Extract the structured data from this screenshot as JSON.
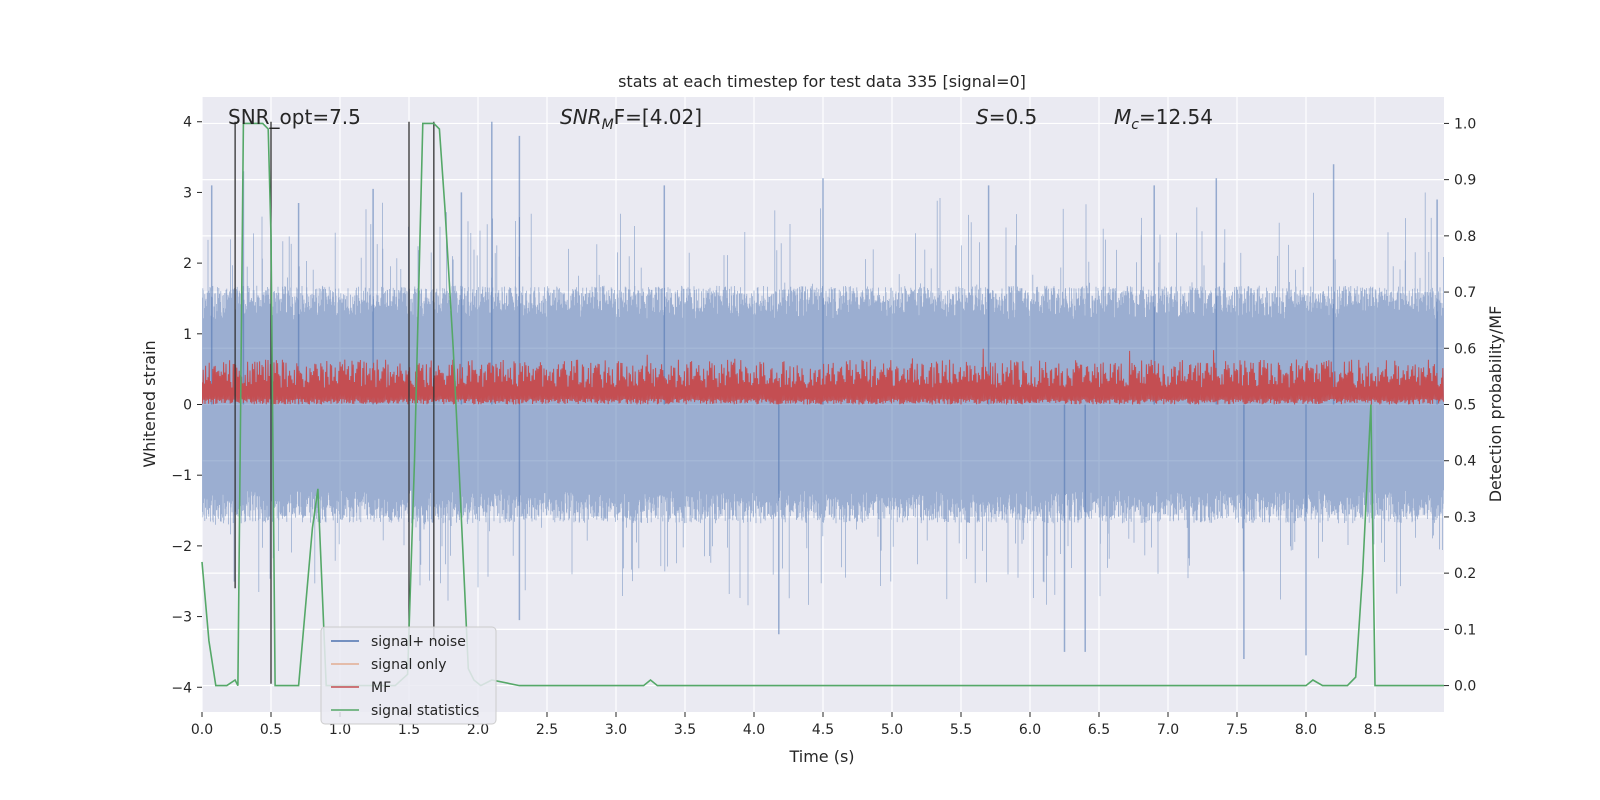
{
  "chart_data": {
    "type": "line",
    "title": "stats at each timestep for test data 335 [signal=0]",
    "xlabel": "Time (s)",
    "ylabel": "Whitened strain",
    "y2label": "Detection probability/MF",
    "xlim": [
      0.0,
      9.0
    ],
    "ylim": [
      -4.35,
      4.35
    ],
    "y2lim": [
      -0.047,
      1.047
    ],
    "x_ticks": [
      0.0,
      0.5,
      1.0,
      1.5,
      2.0,
      2.5,
      3.0,
      3.5,
      4.0,
      4.5,
      5.0,
      5.5,
      6.0,
      6.5,
      7.0,
      7.5,
      8.0,
      8.5
    ],
    "x_tick_labels": [
      "0.0",
      "0.5",
      "1.0",
      "1.5",
      "2.0",
      "2.5",
      "3.0",
      "3.5",
      "4.0",
      "4.5",
      "5.0",
      "5.5",
      "6.0",
      "6.5",
      "7.0",
      "7.5",
      "8.0",
      "8.5"
    ],
    "y_ticks": [
      -4,
      -3,
      -2,
      -1,
      0,
      1,
      2,
      3,
      4
    ],
    "y_tick_labels": [
      "−4",
      "−3",
      "−2",
      "−1",
      "0",
      "1",
      "2",
      "3",
      "4"
    ],
    "y2_ticks": [
      0.0,
      0.1,
      0.2,
      0.3,
      0.4,
      0.5,
      0.6,
      0.7,
      0.8,
      0.9,
      1.0
    ],
    "y2_tick_labels": [
      "0.0",
      "0.1",
      "0.2",
      "0.3",
      "0.4",
      "0.5",
      "0.6",
      "0.7",
      "0.8",
      "0.9",
      "1.0"
    ],
    "grid": true,
    "annotations": {
      "snr_opt": "SNR_opt=7.5",
      "snr_mf_sym": "SNR",
      "snr_mf_sub": "M",
      "snr_mf_rest": "F=[4.02]",
      "s_sym": "S",
      "s_rest": "=0.5",
      "mc_sym": "M",
      "mc_sub": "c",
      "mc_rest": "=12.54"
    },
    "legend": {
      "placement": "lower-left",
      "entries": [
        {
          "label": "signal+ noise",
          "color": "#4c72b0"
        },
        {
          "label": "signal only",
          "color": "#dd8452"
        },
        {
          "label": "MF",
          "color": "#c44e52"
        },
        {
          "label": "signal statistics",
          "color": "#55a868"
        }
      ]
    },
    "series": [
      {
        "name": "signal+ noise",
        "color": "#4c72b0",
        "axis": "left",
        "description": "dense noise band, typical envelope ±1.6, peaks to about ±4",
        "typical_amplitude": 1.6,
        "notable_peaks": [
          [
            0.07,
            3.1
          ],
          [
            0.3,
            3.3
          ],
          [
            0.7,
            2.85
          ],
          [
            1.24,
            3.05
          ],
          [
            1.88,
            3.0
          ],
          [
            2.1,
            4.0
          ],
          [
            2.3,
            3.8
          ],
          [
            3.35,
            3.1
          ],
          [
            4.5,
            3.2
          ],
          [
            5.7,
            3.1
          ],
          [
            6.9,
            3.1
          ],
          [
            7.35,
            3.2
          ],
          [
            8.2,
            3.4
          ],
          [
            8.95,
            2.9
          ],
          [
            4.18,
            -3.25
          ],
          [
            6.25,
            -3.5
          ],
          [
            6.4,
            -3.5
          ],
          [
            7.55,
            -3.6
          ],
          [
            8.0,
            -3.55
          ],
          [
            2.3,
            -3.05
          ]
        ]
      },
      {
        "name": "MF",
        "color": "#c44e52",
        "axis": "right",
        "description": "matched-filter output oscillating between about 0.5 and 0.62",
        "baseline": 0.5,
        "typical_top": 0.58,
        "max": 0.62
      },
      {
        "name": "signal statistics",
        "color": "#55a868",
        "axis": "right",
        "x": [
          0.0,
          0.05,
          0.1,
          0.18,
          0.24,
          0.26,
          0.3,
          0.44,
          0.48,
          0.5,
          0.53,
          0.58,
          0.64,
          0.7,
          0.8,
          0.84,
          0.9,
          1.4,
          1.49,
          1.54,
          1.6,
          1.68,
          1.72,
          1.76,
          1.82,
          1.86,
          1.93,
          1.97,
          2.02,
          2.1,
          2.3,
          3.2,
          3.25,
          3.3,
          4.0,
          8.0,
          8.05,
          8.12,
          8.3,
          8.36,
          8.41,
          8.47,
          8.5,
          9.0
        ],
        "values": [
          0.22,
          0.08,
          0.0,
          0.0,
          0.01,
          0.0,
          1.0,
          1.0,
          0.99,
          0.8,
          0.0,
          0.0,
          0.0,
          0.0,
          0.28,
          0.35,
          0.0,
          0.0,
          0.02,
          0.4,
          1.0,
          1.0,
          0.99,
          0.85,
          0.6,
          0.4,
          0.03,
          0.01,
          0.0,
          0.01,
          0.0,
          0.0,
          0.01,
          0.0,
          0.0,
          0.0,
          0.01,
          0.0,
          0.0,
          0.015,
          0.2,
          0.5,
          0.0,
          0.0
        ]
      },
      {
        "name": "markers",
        "color": "#333333",
        "axis": "left",
        "description": "thin vertical marker lines",
        "x": [
          0.24,
          0.5,
          1.5,
          1.68
        ],
        "top": [
          4.0,
          4.0,
          4.0,
          4.0
        ],
        "bottom": [
          -2.6,
          -3.95,
          -3.35,
          -3.35
        ]
      }
    ]
  }
}
